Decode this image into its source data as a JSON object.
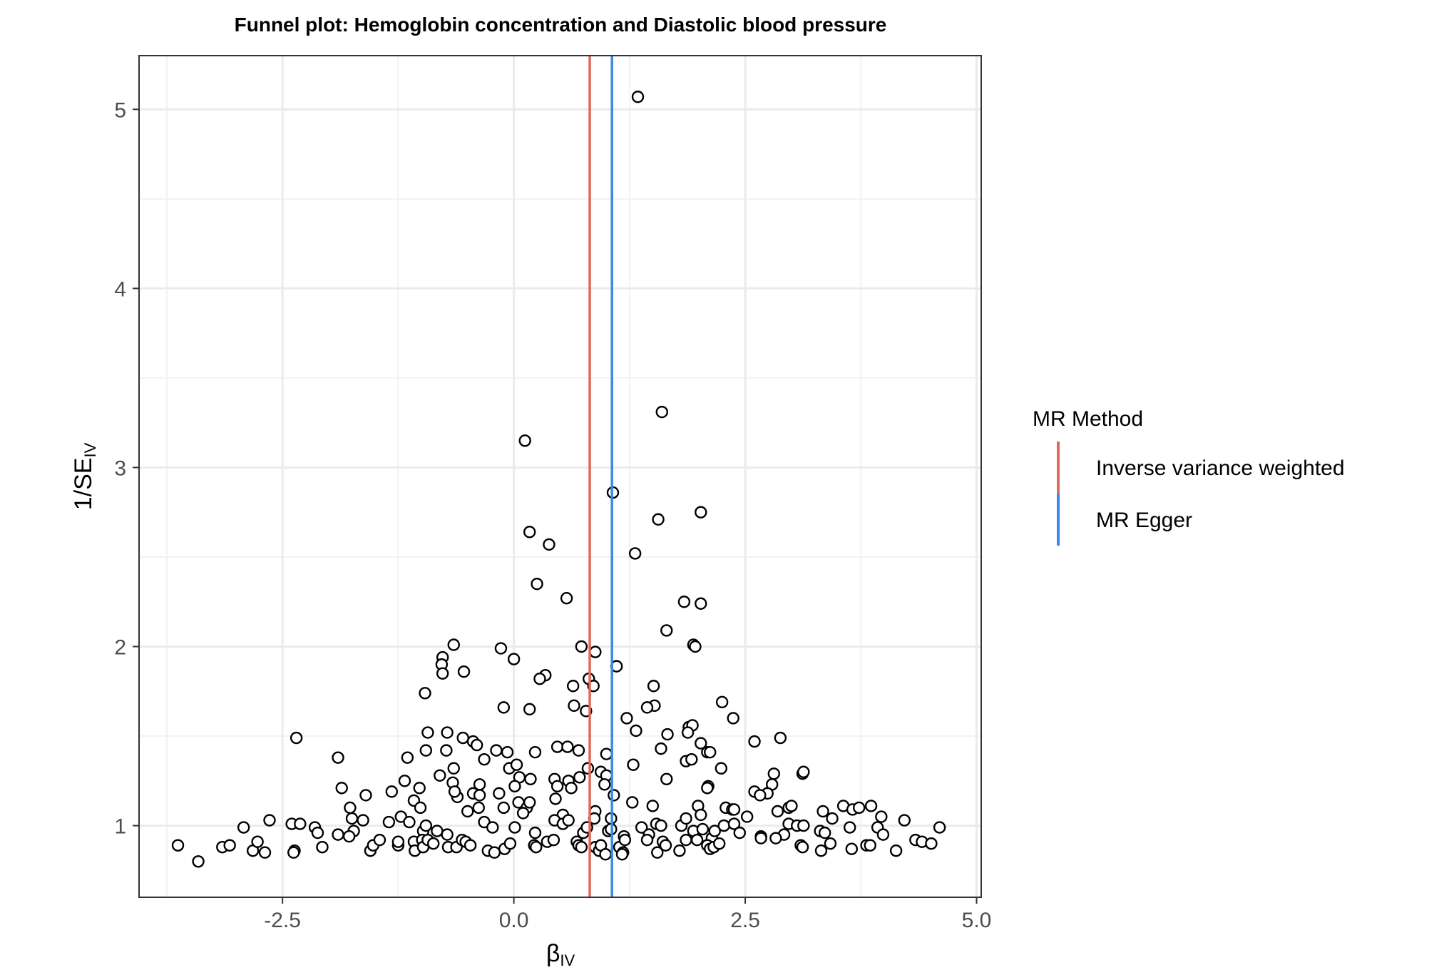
{
  "chart_data": {
    "type": "scatter",
    "title": "Funnel plot: Hemoglobin concentration and Diastolic blood pressure",
    "xlabel": "β",
    "xlabel_sub": "IV",
    "ylabel": "1/SE",
    "ylabel_sub": "IV",
    "xlim": [
      -4.05,
      5.05
    ],
    "ylim": [
      0.6,
      5.3
    ],
    "xticks": [
      -2.5,
      0.0,
      2.5,
      5.0
    ],
    "xtick_labels": [
      "-2.5",
      "0.0",
      "2.5",
      "5.0"
    ],
    "yticks": [
      1,
      2,
      3,
      4,
      5
    ],
    "ytick_labels": [
      "1",
      "2",
      "3",
      "4",
      "5"
    ],
    "grid": true,
    "legend": {
      "title": "MR Method",
      "position": "right",
      "entries": [
        {
          "label": "Inverse variance weighted",
          "color": "#E0695A"
        },
        {
          "label": "MR Egger",
          "color": "#3F87E8"
        }
      ]
    },
    "vlines": [
      {
        "method": "Inverse variance weighted",
        "x": 0.82,
        "color": "#E0695A"
      },
      {
        "method": "MR Egger",
        "x": 1.06,
        "color": "#3F87E8"
      }
    ],
    "points": [
      [
        1.34,
        5.07
      ],
      [
        1.6,
        3.31
      ],
      [
        0.12,
        3.15
      ],
      [
        1.07,
        2.86
      ],
      [
        2.02,
        2.75
      ],
      [
        1.56,
        2.71
      ],
      [
        0.17,
        2.64
      ],
      [
        0.38,
        2.57
      ],
      [
        1.31,
        2.52
      ],
      [
        0.25,
        2.35
      ],
      [
        0.57,
        2.27
      ],
      [
        1.84,
        2.25
      ],
      [
        2.02,
        2.24
      ],
      [
        1.65,
        2.09
      ],
      [
        1.94,
        2.01
      ],
      [
        1.96,
        2.0
      ],
      [
        -0.65,
        2.01
      ],
      [
        -0.14,
        1.99
      ],
      [
        0.73,
        2.0
      ],
      [
        0.88,
        1.97
      ],
      [
        -0.77,
        1.94
      ],
      [
        0.0,
        1.93
      ],
      [
        -0.78,
        1.9
      ],
      [
        1.11,
        1.89
      ],
      [
        -0.77,
        1.85
      ],
      [
        -0.54,
        1.86
      ],
      [
        0.34,
        1.84
      ],
      [
        0.28,
        1.82
      ],
      [
        0.81,
        1.82
      ],
      [
        0.86,
        1.78
      ],
      [
        1.51,
        1.78
      ],
      [
        0.64,
        1.78
      ],
      [
        -0.96,
        1.74
      ],
      [
        2.25,
        1.69
      ],
      [
        1.52,
        1.67
      ],
      [
        0.65,
        1.67
      ],
      [
        0.17,
        1.65
      ],
      [
        -0.11,
        1.66
      ],
      [
        1.44,
        1.66
      ],
      [
        0.78,
        1.64
      ],
      [
        2.37,
        1.6
      ],
      [
        1.22,
        1.6
      ],
      [
        1.66,
        1.51
      ],
      [
        -2.35,
        1.49
      ],
      [
        -0.93,
        1.52
      ],
      [
        -0.72,
        1.52
      ],
      [
        1.32,
        1.53
      ],
      [
        1.89,
        1.55
      ],
      [
        1.93,
        1.56
      ],
      [
        1.88,
        1.52
      ],
      [
        -0.55,
        1.49
      ],
      [
        -0.44,
        1.47
      ],
      [
        -0.4,
        1.45
      ],
      [
        0.47,
        1.44
      ],
      [
        0.58,
        1.44
      ],
      [
        2.88,
        1.49
      ],
      [
        2.6,
        1.47
      ],
      [
        2.02,
        1.46
      ],
      [
        -0.95,
        1.42
      ],
      [
        -0.73,
        1.42
      ],
      [
        -0.19,
        1.42
      ],
      [
        -0.07,
        1.41
      ],
      [
        0.23,
        1.41
      ],
      [
        0.7,
        1.42
      ],
      [
        1.0,
        1.4
      ],
      [
        2.09,
        1.41
      ],
      [
        2.12,
        1.41
      ],
      [
        -1.9,
        1.38
      ],
      [
        -1.15,
        1.38
      ],
      [
        -0.32,
        1.37
      ],
      [
        -0.05,
        1.32
      ],
      [
        0.03,
        1.34
      ],
      [
        1.29,
        1.34
      ],
      [
        1.59,
        1.43
      ],
      [
        1.86,
        1.36
      ],
      [
        1.92,
        1.37
      ],
      [
        -0.65,
        1.32
      ],
      [
        -0.8,
        1.28
      ],
      [
        -0.37,
        1.23
      ],
      [
        0.06,
        1.27
      ],
      [
        0.18,
        1.26
      ],
      [
        0.44,
        1.26
      ],
      [
        0.59,
        1.25
      ],
      [
        0.71,
        1.27
      ],
      [
        0.8,
        1.32
      ],
      [
        0.94,
        1.3
      ],
      [
        1.0,
        1.28
      ],
      [
        1.65,
        1.26
      ],
      [
        2.1,
        1.22
      ],
      [
        2.24,
        1.32
      ],
      [
        2.81,
        1.29
      ],
      [
        2.79,
        1.23
      ],
      [
        3.12,
        1.29
      ],
      [
        3.13,
        1.3
      ],
      [
        -1.86,
        1.21
      ],
      [
        -1.18,
        1.25
      ],
      [
        -1.32,
        1.19
      ],
      [
        -1.02,
        1.21
      ],
      [
        -0.66,
        1.24
      ],
      [
        -0.61,
        1.16
      ],
      [
        -0.64,
        1.19
      ],
      [
        -0.44,
        1.18
      ],
      [
        -0.37,
        1.17
      ],
      [
        -0.16,
        1.18
      ],
      [
        0.01,
        1.22
      ],
      [
        0.47,
        1.22
      ],
      [
        0.62,
        1.21
      ],
      [
        0.98,
        1.23
      ],
      [
        1.08,
        1.17
      ],
      [
        2.09,
        1.21
      ],
      [
        2.6,
        1.19
      ],
      [
        2.74,
        1.18
      ],
      [
        2.66,
        1.17
      ],
      [
        -1.6,
        1.17
      ],
      [
        -1.08,
        1.14
      ],
      [
        -1.01,
        1.1
      ],
      [
        -1.77,
        1.1
      ],
      [
        -0.5,
        1.08
      ],
      [
        -0.38,
        1.1
      ],
      [
        -0.11,
        1.1
      ],
      [
        0.05,
        1.13
      ],
      [
        0.14,
        1.1
      ],
      [
        0.17,
        1.13
      ],
      [
        0.45,
        1.15
      ],
      [
        0.53,
        1.06
      ],
      [
        0.88,
        1.08
      ],
      [
        1.28,
        1.13
      ],
      [
        1.5,
        1.11
      ],
      [
        1.99,
        1.11
      ],
      [
        2.29,
        1.1
      ],
      [
        2.36,
        1.09
      ],
      [
        2.38,
        1.09
      ],
      [
        2.52,
        1.05
      ],
      [
        2.85,
        1.08
      ],
      [
        2.97,
        1.1
      ],
      [
        3.0,
        1.11
      ],
      [
        3.34,
        1.08
      ],
      [
        3.56,
        1.11
      ],
      [
        3.66,
        1.09
      ],
      [
        3.73,
        1.1
      ],
      [
        3.86,
        1.11
      ],
      [
        3.97,
        1.05
      ],
      [
        4.22,
        1.03
      ],
      [
        -2.64,
        1.03
      ],
      [
        -2.4,
        1.01
      ],
      [
        -2.31,
        1.01
      ],
      [
        -2.15,
        0.99
      ],
      [
        -2.92,
        0.99
      ],
      [
        -2.12,
        0.96
      ],
      [
        -1.9,
        0.95
      ],
      [
        -1.73,
        0.97
      ],
      [
        -1.75,
        1.04
      ],
      [
        -1.63,
        1.03
      ],
      [
        -1.35,
        1.02
      ],
      [
        -1.22,
        1.05
      ],
      [
        -1.13,
        1.02
      ],
      [
        -0.98,
        0.97
      ],
      [
        -0.95,
        1.0
      ],
      [
        -0.83,
        0.97
      ],
      [
        -0.72,
        0.95
      ],
      [
        -0.32,
        1.02
      ],
      [
        -0.23,
        0.99
      ],
      [
        0.01,
        0.99
      ],
      [
        0.1,
        1.07
      ],
      [
        0.23,
        0.96
      ],
      [
        0.44,
        1.03
      ],
      [
        0.53,
        1.01
      ],
      [
        0.59,
        1.03
      ],
      [
        0.75,
        0.96
      ],
      [
        0.79,
        0.99
      ],
      [
        0.87,
        1.04
      ],
      [
        1.02,
        0.97
      ],
      [
        1.05,
        1.04
      ],
      [
        1.19,
        0.94
      ],
      [
        1.38,
        0.99
      ],
      [
        1.46,
        0.95
      ],
      [
        1.54,
        1.01
      ],
      [
        1.59,
        1.0
      ],
      [
        1.81,
        1.0
      ],
      [
        1.86,
        1.04
      ],
      [
        1.94,
        0.97
      ],
      [
        2.02,
        1.06
      ],
      [
        2.04,
        0.98
      ],
      [
        2.14,
        0.93
      ],
      [
        2.17,
        0.97
      ],
      [
        2.27,
        1.0
      ],
      [
        2.38,
        1.01
      ],
      [
        2.44,
        0.96
      ],
      [
        2.67,
        0.94
      ],
      [
        2.92,
        0.95
      ],
      [
        2.97,
        1.01
      ],
      [
        3.06,
        1.0
      ],
      [
        3.13,
        1.0
      ],
      [
        3.31,
        0.97
      ],
      [
        3.36,
        0.96
      ],
      [
        3.44,
        1.04
      ],
      [
        3.63,
        0.99
      ],
      [
        3.93,
        0.99
      ],
      [
        3.99,
        0.95
      ],
      [
        4.6,
        0.99
      ],
      [
        -3.63,
        0.89
      ],
      [
        -3.41,
        0.8
      ],
      [
        -3.15,
        0.88
      ],
      [
        -3.07,
        0.89
      ],
      [
        -2.82,
        0.86
      ],
      [
        -2.77,
        0.91
      ],
      [
        -2.69,
        0.85
      ],
      [
        -2.37,
        0.86
      ],
      [
        -2.38,
        0.85
      ],
      [
        -2.07,
        0.88
      ],
      [
        -1.78,
        0.94
      ],
      [
        -1.55,
        0.86
      ],
      [
        -1.52,
        0.89
      ],
      [
        -1.45,
        0.92
      ],
      [
        -1.25,
        0.89
      ],
      [
        -1.25,
        0.91
      ],
      [
        -1.08,
        0.91
      ],
      [
        -1.07,
        0.86
      ],
      [
        -0.99,
        0.92
      ],
      [
        -0.98,
        0.88
      ],
      [
        -0.93,
        0.92
      ],
      [
        -0.87,
        0.9
      ],
      [
        -0.71,
        0.88
      ],
      [
        -0.62,
        0.88
      ],
      [
        -0.56,
        0.92
      ],
      [
        -0.52,
        0.91
      ],
      [
        -0.47,
        0.89
      ],
      [
        -0.28,
        0.86
      ],
      [
        -0.21,
        0.85
      ],
      [
        -0.1,
        0.87
      ],
      [
        -0.04,
        0.9
      ],
      [
        0.22,
        0.89
      ],
      [
        0.24,
        0.88
      ],
      [
        0.36,
        0.91
      ],
      [
        0.43,
        0.92
      ],
      [
        0.68,
        0.91
      ],
      [
        0.7,
        0.89
      ],
      [
        0.73,
        0.88
      ],
      [
        0.88,
        0.88
      ],
      [
        0.92,
        0.86
      ],
      [
        0.94,
        0.89
      ],
      [
        0.99,
        0.84
      ],
      [
        1.05,
        0.98
      ],
      [
        1.14,
        0.88
      ],
      [
        1.18,
        0.85
      ],
      [
        1.2,
        0.92
      ],
      [
        1.44,
        0.92
      ],
      [
        1.55,
        0.85
      ],
      [
        1.61,
        0.91
      ],
      [
        1.64,
        0.89
      ],
      [
        1.79,
        0.86
      ],
      [
        1.86,
        0.92
      ],
      [
        1.98,
        0.92
      ],
      [
        2.09,
        0.89
      ],
      [
        2.12,
        0.87
      ],
      [
        2.16,
        0.88
      ],
      [
        2.22,
        0.9
      ],
      [
        2.67,
        0.93
      ],
      [
        2.83,
        0.93
      ],
      [
        3.1,
        0.89
      ],
      [
        3.12,
        0.88
      ],
      [
        3.32,
        0.86
      ],
      [
        3.42,
        0.9
      ],
      [
        3.65,
        0.87
      ],
      [
        3.81,
        0.89
      ],
      [
        3.85,
        0.89
      ],
      [
        4.13,
        0.86
      ],
      [
        4.34,
        0.92
      ],
      [
        4.41,
        0.91
      ],
      [
        4.51,
        0.9
      ],
      [
        1.17,
        0.84
      ]
    ]
  }
}
